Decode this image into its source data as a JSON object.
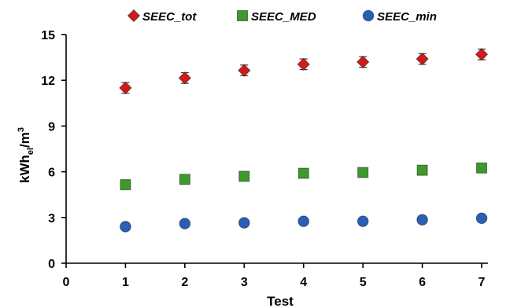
{
  "chart_data": {
    "type": "scatter",
    "xlabel": "Test",
    "ylabel": {
      "base": "kWh",
      "sub": "el",
      "mid": "/m",
      "sup": "3"
    },
    "xlim": [
      0,
      7
    ],
    "ylim": [
      0,
      15
    ],
    "x_ticks": [
      0,
      1,
      2,
      3,
      4,
      5,
      6,
      7
    ],
    "y_ticks": [
      0,
      3,
      6,
      9,
      12,
      15
    ],
    "grid": false,
    "legend_position": "top",
    "series": [
      {
        "name": "SEEC_tot",
        "marker": "diamond",
        "color": "#d11a1a",
        "x": [
          1,
          2,
          3,
          4,
          5,
          6,
          7
        ],
        "y": [
          11.5,
          12.15,
          12.65,
          13.05,
          13.2,
          13.4,
          13.7
        ],
        "error": [
          0.35,
          0.35,
          0.35,
          0.35,
          0.35,
          0.35,
          0.35
        ]
      },
      {
        "name": "SEEC_MED",
        "marker": "square",
        "color": "#3d9a2b",
        "x": [
          1,
          2,
          3,
          4,
          5,
          6,
          7
        ],
        "y": [
          5.15,
          5.5,
          5.7,
          5.9,
          5.95,
          6.1,
          6.25
        ],
        "error": []
      },
      {
        "name": "SEEC_min",
        "marker": "circle",
        "color": "#2a5fb8",
        "x": [
          1,
          2,
          3,
          4,
          5,
          6,
          7
        ],
        "y": [
          2.4,
          2.6,
          2.65,
          2.75,
          2.75,
          2.85,
          2.95
        ],
        "error": []
      }
    ]
  }
}
